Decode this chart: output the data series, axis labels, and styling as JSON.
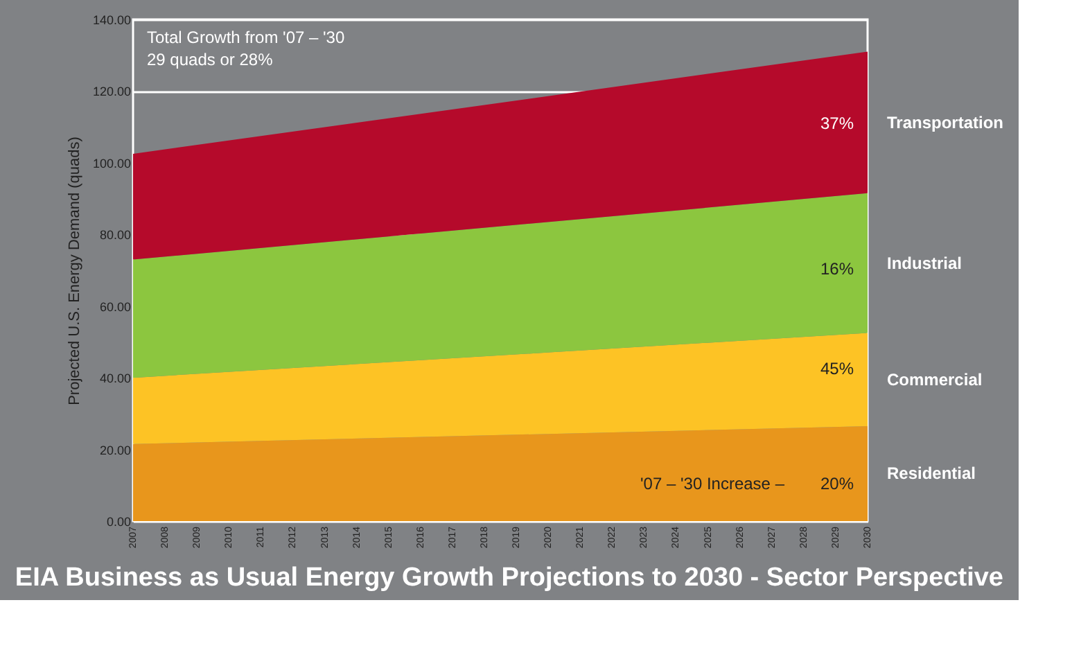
{
  "chart_data": {
    "type": "area",
    "stacked": true,
    "title": "EIA Business as Usual Energy Growth Projections to 2030 - Sector Perspective",
    "ylabel": "Projected U.S. Energy Demand (quads)",
    "xlim": [
      2007,
      2030
    ],
    "xticks": [
      2007,
      2008,
      2009,
      2010,
      2011,
      2012,
      2013,
      2014,
      2015,
      2016,
      2017,
      2018,
      2019,
      2020,
      2021,
      2022,
      2023,
      2024,
      2025,
      2026,
      2027,
      2028,
      2029,
      2030
    ],
    "ylim": [
      0,
      140
    ],
    "yticks": [
      {
        "value": 0,
        "label": "0.00"
      },
      {
        "value": 20,
        "label": "20.00"
      },
      {
        "value": 40,
        "label": "40.00"
      },
      {
        "value": 60,
        "label": "60.00"
      },
      {
        "value": 80,
        "label": "80.00"
      },
      {
        "value": 100,
        "label": "100.00"
      },
      {
        "value": 120,
        "label": "120.00"
      },
      {
        "value": 140,
        "label": "140.00"
      }
    ],
    "grid": "y",
    "legend": false,
    "series": [
      {
        "name": "Residential",
        "color": "#e8961c",
        "values": [
          21.5,
          26.5
        ]
      },
      {
        "name": "Commercial",
        "color": "#fdc325",
        "values": [
          18.5,
          26
        ]
      },
      {
        "name": "Industrial",
        "color": "#8cc63f",
        "values": [
          33,
          39
        ]
      },
      {
        "name": "Transportation",
        "color": "#b50a2b",
        "values": [
          29.5,
          39.5
        ]
      }
    ],
    "x": [
      2007,
      2030
    ],
    "annotations": [
      "Total Growth from '07 – '30\n29 quads or 28%",
      "37%",
      "16%",
      "45%",
      "'07 – '30 Increase –",
      "20%"
    ]
  }
}
